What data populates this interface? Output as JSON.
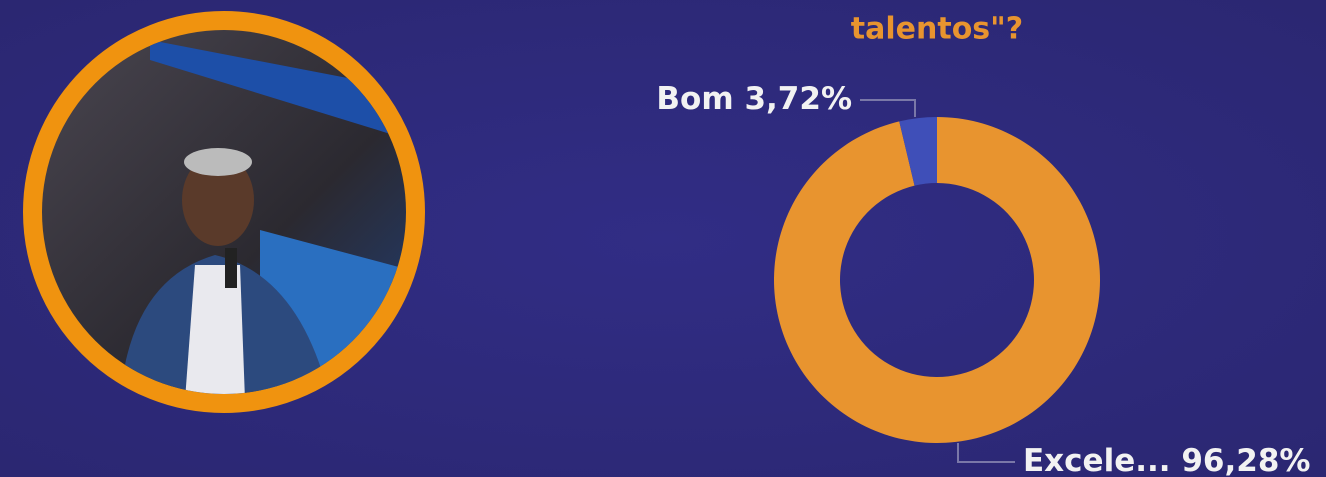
{
  "chart_data": {
    "type": "pie",
    "donut": true,
    "title": "talentos\"?",
    "categories": [
      "Excele...",
      "Bom"
    ],
    "values": [
      96.28,
      3.72
    ],
    "value_labels": [
      "96,28%",
      "3,72%"
    ],
    "colors": [
      "#e8942f",
      "#3f4fb8"
    ]
  }
}
